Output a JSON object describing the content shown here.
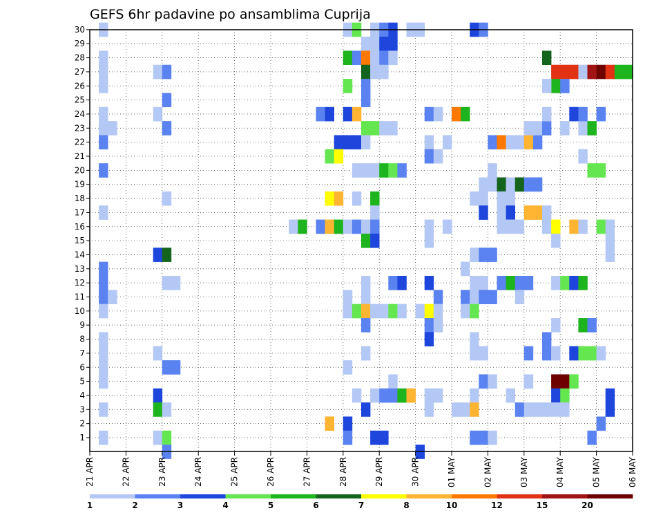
{
  "chart_data": {
    "type": "heatmap",
    "title": "GEFS 6hr padavine po ansamblima Cuprija",
    "xlabel": "",
    "ylabel": "",
    "x_tick_labels": [
      "21 APR",
      "22 APR",
      "23 APR",
      "24 APR",
      "25 APR",
      "26 APR",
      "27 APR",
      "28 APR",
      "29 APR",
      "30 APR",
      "01 MAY",
      "02 MAY",
      "03 MAY",
      "04 MAY",
      "05 MAY",
      "06 MAY"
    ],
    "y_tick_labels": [
      "1",
      "2",
      "3",
      "4",
      "5",
      "6",
      "7",
      "8",
      "9",
      "10",
      "11",
      "12",
      "13",
      "14",
      "15",
      "16",
      "17",
      "18",
      "19",
      "20",
      "21",
      "22",
      "23",
      "24",
      "25",
      "26",
      "27",
      "28",
      "29",
      "30"
    ],
    "ylim": [
      1,
      30
    ],
    "grid": true,
    "legend": {
      "placement": "bottom",
      "labels": [
        "1",
        "2",
        "3",
        "4",
        "5",
        "6",
        "7",
        "8",
        "10",
        "12",
        "15",
        "20"
      ],
      "colors": [
        "#b4c8f5",
        "#5a82f0",
        "#1e46dc",
        "#64e650",
        "#1eb41e",
        "#14641e",
        "#ffff00",
        "#ffb432",
        "#ff7800",
        "#e13214",
        "#a01414",
        "#6e0000"
      ]
    },
    "level_colors": [
      "#b4c8f5",
      "#5a82f0",
      "#1e46dc",
      "#64e650",
      "#1eb41e",
      "#14641e",
      "#ffff00",
      "#ffb432",
      "#ff7800",
      "#e13214",
      "#a01414",
      "#6e0000"
    ],
    "cells_note": "each cell = [time step index (6h steps from 21 APR 00z), ensemble member, precipitation in mm (6h)]",
    "cells": [
      [
        1,
        30,
        1
      ],
      [
        1,
        28,
        1
      ],
      [
        1,
        27,
        1
      ],
      [
        1,
        26,
        1
      ],
      [
        1,
        24,
        1
      ],
      [
        1,
        23,
        1
      ],
      [
        2,
        23,
        1
      ],
      [
        1,
        22,
        2
      ],
      [
        1,
        20,
        2
      ],
      [
        1,
        17,
        1
      ],
      [
        1,
        13,
        2
      ],
      [
        1,
        12,
        2
      ],
      [
        1,
        11,
        2
      ],
      [
        2,
        11,
        1
      ],
      [
        1,
        10,
        1
      ],
      [
        1,
        8,
        1
      ],
      [
        1,
        7,
        1
      ],
      [
        1,
        6,
        1
      ],
      [
        1,
        5,
        1
      ],
      [
        1,
        3,
        1
      ],
      [
        1,
        1,
        1
      ],
      [
        7,
        27,
        1
      ],
      [
        8,
        27,
        2
      ],
      [
        8,
        25,
        2
      ],
      [
        7,
        24,
        1
      ],
      [
        8,
        23,
        2
      ],
      [
        8,
        18,
        1
      ],
      [
        7,
        14,
        3
      ],
      [
        8,
        14,
        6
      ],
      [
        8,
        12,
        1
      ],
      [
        9,
        12,
        1
      ],
      [
        7,
        7,
        1
      ],
      [
        8,
        6,
        2
      ],
      [
        9,
        6,
        2
      ],
      [
        7,
        4,
        3
      ],
      [
        7,
        3,
        5
      ],
      [
        8,
        3,
        1
      ],
      [
        7,
        1,
        1
      ],
      [
        8,
        1,
        4
      ],
      [
        8,
        0,
        2
      ],
      [
        22,
        16,
        1
      ],
      [
        23,
        16,
        5
      ],
      [
        25,
        16,
        2
      ],
      [
        26,
        16,
        8
      ],
      [
        27,
        16,
        5
      ],
      [
        25,
        24,
        2
      ],
      [
        26,
        24,
        3
      ],
      [
        28,
        30,
        1
      ],
      [
        29,
        30,
        4
      ],
      [
        31,
        30,
        1
      ],
      [
        32,
        30,
        2
      ],
      [
        33,
        30,
        3
      ],
      [
        35,
        30,
        1
      ],
      [
        36,
        30,
        1
      ],
      [
        30,
        29,
        1
      ],
      [
        31,
        29,
        1
      ],
      [
        32,
        29,
        3
      ],
      [
        33,
        29,
        3
      ],
      [
        28,
        28,
        5
      ],
      [
        29,
        28,
        2
      ],
      [
        30,
        28,
        11
      ],
      [
        31,
        28,
        1
      ],
      [
        32,
        28,
        2
      ],
      [
        33,
        28,
        1
      ],
      [
        30,
        27,
        6
      ],
      [
        31,
        27,
        1
      ],
      [
        32,
        27,
        1
      ],
      [
        28,
        26,
        4
      ],
      [
        30,
        26,
        2
      ],
      [
        30,
        25,
        2
      ],
      [
        28,
        24,
        3
      ],
      [
        29,
        24,
        8
      ],
      [
        30,
        23,
        4
      ],
      [
        31,
        23,
        4
      ],
      [
        32,
        23,
        1
      ],
      [
        33,
        23,
        1
      ],
      [
        27,
        22,
        3
      ],
      [
        28,
        22,
        3
      ],
      [
        29,
        22,
        3
      ],
      [
        30,
        22,
        1
      ],
      [
        26,
        21,
        4
      ],
      [
        27,
        21,
        7
      ],
      [
        29,
        20,
        1
      ],
      [
        30,
        20,
        1
      ],
      [
        31,
        20,
        1
      ],
      [
        32,
        20,
        5
      ],
      [
        33,
        20,
        4
      ],
      [
        34,
        20,
        2
      ],
      [
        26,
        18,
        7
      ],
      [
        27,
        18,
        8
      ],
      [
        29,
        18,
        1
      ],
      [
        31,
        18,
        5
      ],
      [
        31,
        17,
        1
      ],
      [
        28,
        16,
        1
      ],
      [
        29,
        16,
        2
      ],
      [
        30,
        16,
        1
      ],
      [
        31,
        16,
        2
      ],
      [
        30,
        15,
        5
      ],
      [
        31,
        15,
        3
      ],
      [
        30,
        12,
        1
      ],
      [
        33,
        12,
        2
      ],
      [
        34,
        12,
        3
      ],
      [
        28,
        11,
        1
      ],
      [
        30,
        11,
        1
      ],
      [
        28,
        10,
        1
      ],
      [
        29,
        10,
        4
      ],
      [
        30,
        10,
        8
      ],
      [
        31,
        10,
        1
      ],
      [
        32,
        10,
        1
      ],
      [
        33,
        10,
        4
      ],
      [
        34,
        10,
        1
      ],
      [
        30,
        9,
        2
      ],
      [
        30,
        7,
        1
      ],
      [
        28,
        6,
        1
      ],
      [
        33,
        5,
        1
      ],
      [
        29,
        4,
        1
      ],
      [
        31,
        4,
        1
      ],
      [
        32,
        4,
        2
      ],
      [
        33,
        4,
        2
      ],
      [
        34,
        4,
        5
      ],
      [
        30,
        3,
        3
      ],
      [
        26,
        2,
        8
      ],
      [
        28,
        2,
        3
      ],
      [
        28,
        1,
        2
      ],
      [
        31,
        1,
        3
      ],
      [
        32,
        1,
        3
      ],
      [
        36,
        0,
        3
      ],
      [
        37,
        24,
        2
      ],
      [
        38,
        24,
        1
      ],
      [
        40,
        24,
        11
      ],
      [
        41,
        24,
        5
      ],
      [
        37,
        22,
        1
      ],
      [
        39,
        22,
        1
      ],
      [
        37,
        21,
        2
      ],
      [
        38,
        21,
        1
      ],
      [
        37,
        16,
        1
      ],
      [
        39,
        16,
        1
      ],
      [
        37,
        15,
        1
      ],
      [
        37,
        12,
        3
      ],
      [
        38,
        11,
        2
      ],
      [
        36,
        10,
        1
      ],
      [
        37,
        10,
        7
      ],
      [
        38,
        10,
        1
      ],
      [
        37,
        9,
        2
      ],
      [
        38,
        9,
        1
      ],
      [
        37,
        8,
        3
      ],
      [
        35,
        4,
        8
      ],
      [
        37,
        4,
        1
      ],
      [
        38,
        4,
        1
      ],
      [
        37,
        3,
        1
      ],
      [
        42,
        30,
        3
      ],
      [
        43,
        30,
        2
      ],
      [
        42,
        14,
        1
      ],
      [
        43,
        14,
        2
      ],
      [
        44,
        14,
        2
      ],
      [
        41,
        13,
        1
      ],
      [
        42,
        12,
        1
      ],
      [
        43,
        12,
        1
      ],
      [
        41,
        11,
        2
      ],
      [
        42,
        11,
        1
      ],
      [
        43,
        11,
        2
      ],
      [
        44,
        11,
        2
      ],
      [
        41,
        10,
        1
      ],
      [
        42,
        10,
        4
      ],
      [
        42,
        8,
        1
      ],
      [
        42,
        7,
        1
      ],
      [
        43,
        7,
        1
      ],
      [
        43,
        5,
        2
      ],
      [
        44,
        5,
        1
      ],
      [
        42,
        4,
        1
      ],
      [
        40,
        3,
        1
      ],
      [
        41,
        3,
        1
      ],
      [
        42,
        3,
        8
      ],
      [
        42,
        1,
        2
      ],
      [
        43,
        1,
        2
      ],
      [
        44,
        1,
        1
      ],
      [
        44,
        22,
        2
      ],
      [
        45,
        22,
        10
      ],
      [
        46,
        22,
        1
      ],
      [
        47,
        22,
        1
      ],
      [
        48,
        22,
        8
      ],
      [
        49,
        22,
        2
      ],
      [
        44,
        20,
        1
      ],
      [
        43,
        19,
        1
      ],
      [
        44,
        19,
        1
      ],
      [
        45,
        19,
        6
      ],
      [
        46,
        19,
        1
      ],
      [
        47,
        19,
        6
      ],
      [
        48,
        19,
        2
      ],
      [
        49,
        19,
        2
      ],
      [
        42,
        18,
        1
      ],
      [
        43,
        18,
        1
      ],
      [
        45,
        18,
        1
      ],
      [
        46,
        18,
        1
      ],
      [
        43,
        17,
        3
      ],
      [
        45,
        17,
        1
      ],
      [
        46,
        17,
        3
      ],
      [
        48,
        17,
        8
      ],
      [
        49,
        17,
        8
      ],
      [
        50,
        17,
        1
      ],
      [
        45,
        16,
        1
      ],
      [
        46,
        16,
        1
      ],
      [
        47,
        16,
        1
      ],
      [
        45,
        12,
        2
      ],
      [
        46,
        12,
        5
      ],
      [
        47,
        12,
        2
      ],
      [
        48,
        12,
        2
      ],
      [
        47,
        11,
        1
      ],
      [
        48,
        7,
        2
      ],
      [
        48,
        5,
        1
      ],
      [
        46,
        4,
        1
      ],
      [
        47,
        3,
        2
      ],
      [
        48,
        3,
        1
      ],
      [
        49,
        3,
        1
      ],
      [
        50,
        3,
        1
      ],
      [
        50,
        28,
        6
      ],
      [
        51,
        27,
        12
      ],
      [
        52,
        27,
        12
      ],
      [
        53,
        27,
        12
      ],
      [
        54,
        27,
        1
      ],
      [
        55,
        27,
        15
      ],
      [
        56,
        27,
        20
      ],
      [
        57,
        27,
        12
      ],
      [
        58,
        27,
        5
      ],
      [
        59,
        27,
        5
      ],
      [
        51,
        26,
        5
      ],
      [
        52,
        26,
        2
      ],
      [
        50,
        26,
        1
      ],
      [
        48,
        23,
        1
      ],
      [
        49,
        23,
        1
      ],
      [
        50,
        23,
        2
      ],
      [
        52,
        23,
        1
      ],
      [
        54,
        23,
        1
      ],
      [
        55,
        23,
        5
      ],
      [
        50,
        24,
        1
      ],
      [
        53,
        24,
        3
      ],
      [
        54,
        24,
        2
      ],
      [
        56,
        24,
        2
      ],
      [
        54,
        21,
        1
      ],
      [
        55,
        20,
        4
      ],
      [
        56,
        20,
        4
      ],
      [
        50,
        16,
        1
      ],
      [
        51,
        16,
        7
      ],
      [
        53,
        16,
        8
      ],
      [
        54,
        16,
        1
      ],
      [
        56,
        16,
        4
      ],
      [
        57,
        16,
        1
      ],
      [
        51,
        15,
        1
      ],
      [
        57,
        15,
        1
      ],
      [
        57,
        14,
        1
      ],
      [
        51,
        12,
        1
      ],
      [
        52,
        12,
        4
      ],
      [
        53,
        12,
        3
      ],
      [
        54,
        12,
        5
      ],
      [
        51,
        9,
        1
      ],
      [
        54,
        9,
        5
      ],
      [
        55,
        9,
        2
      ],
      [
        50,
        8,
        2
      ],
      [
        50,
        7,
        2
      ],
      [
        51,
        7,
        1
      ],
      [
        53,
        7,
        3
      ],
      [
        54,
        7,
        4
      ],
      [
        55,
        7,
        4
      ],
      [
        56,
        7,
        1
      ],
      [
        51,
        5,
        20
      ],
      [
        52,
        5,
        20
      ],
      [
        53,
        5,
        4
      ],
      [
        51,
        4,
        3
      ],
      [
        52,
        4,
        4
      ],
      [
        57,
        4,
        3
      ],
      [
        51,
        3,
        1
      ],
      [
        52,
        3,
        1
      ],
      [
        57,
        3,
        3
      ],
      [
        56,
        2,
        2
      ],
      [
        55,
        1,
        2
      ]
    ]
  }
}
